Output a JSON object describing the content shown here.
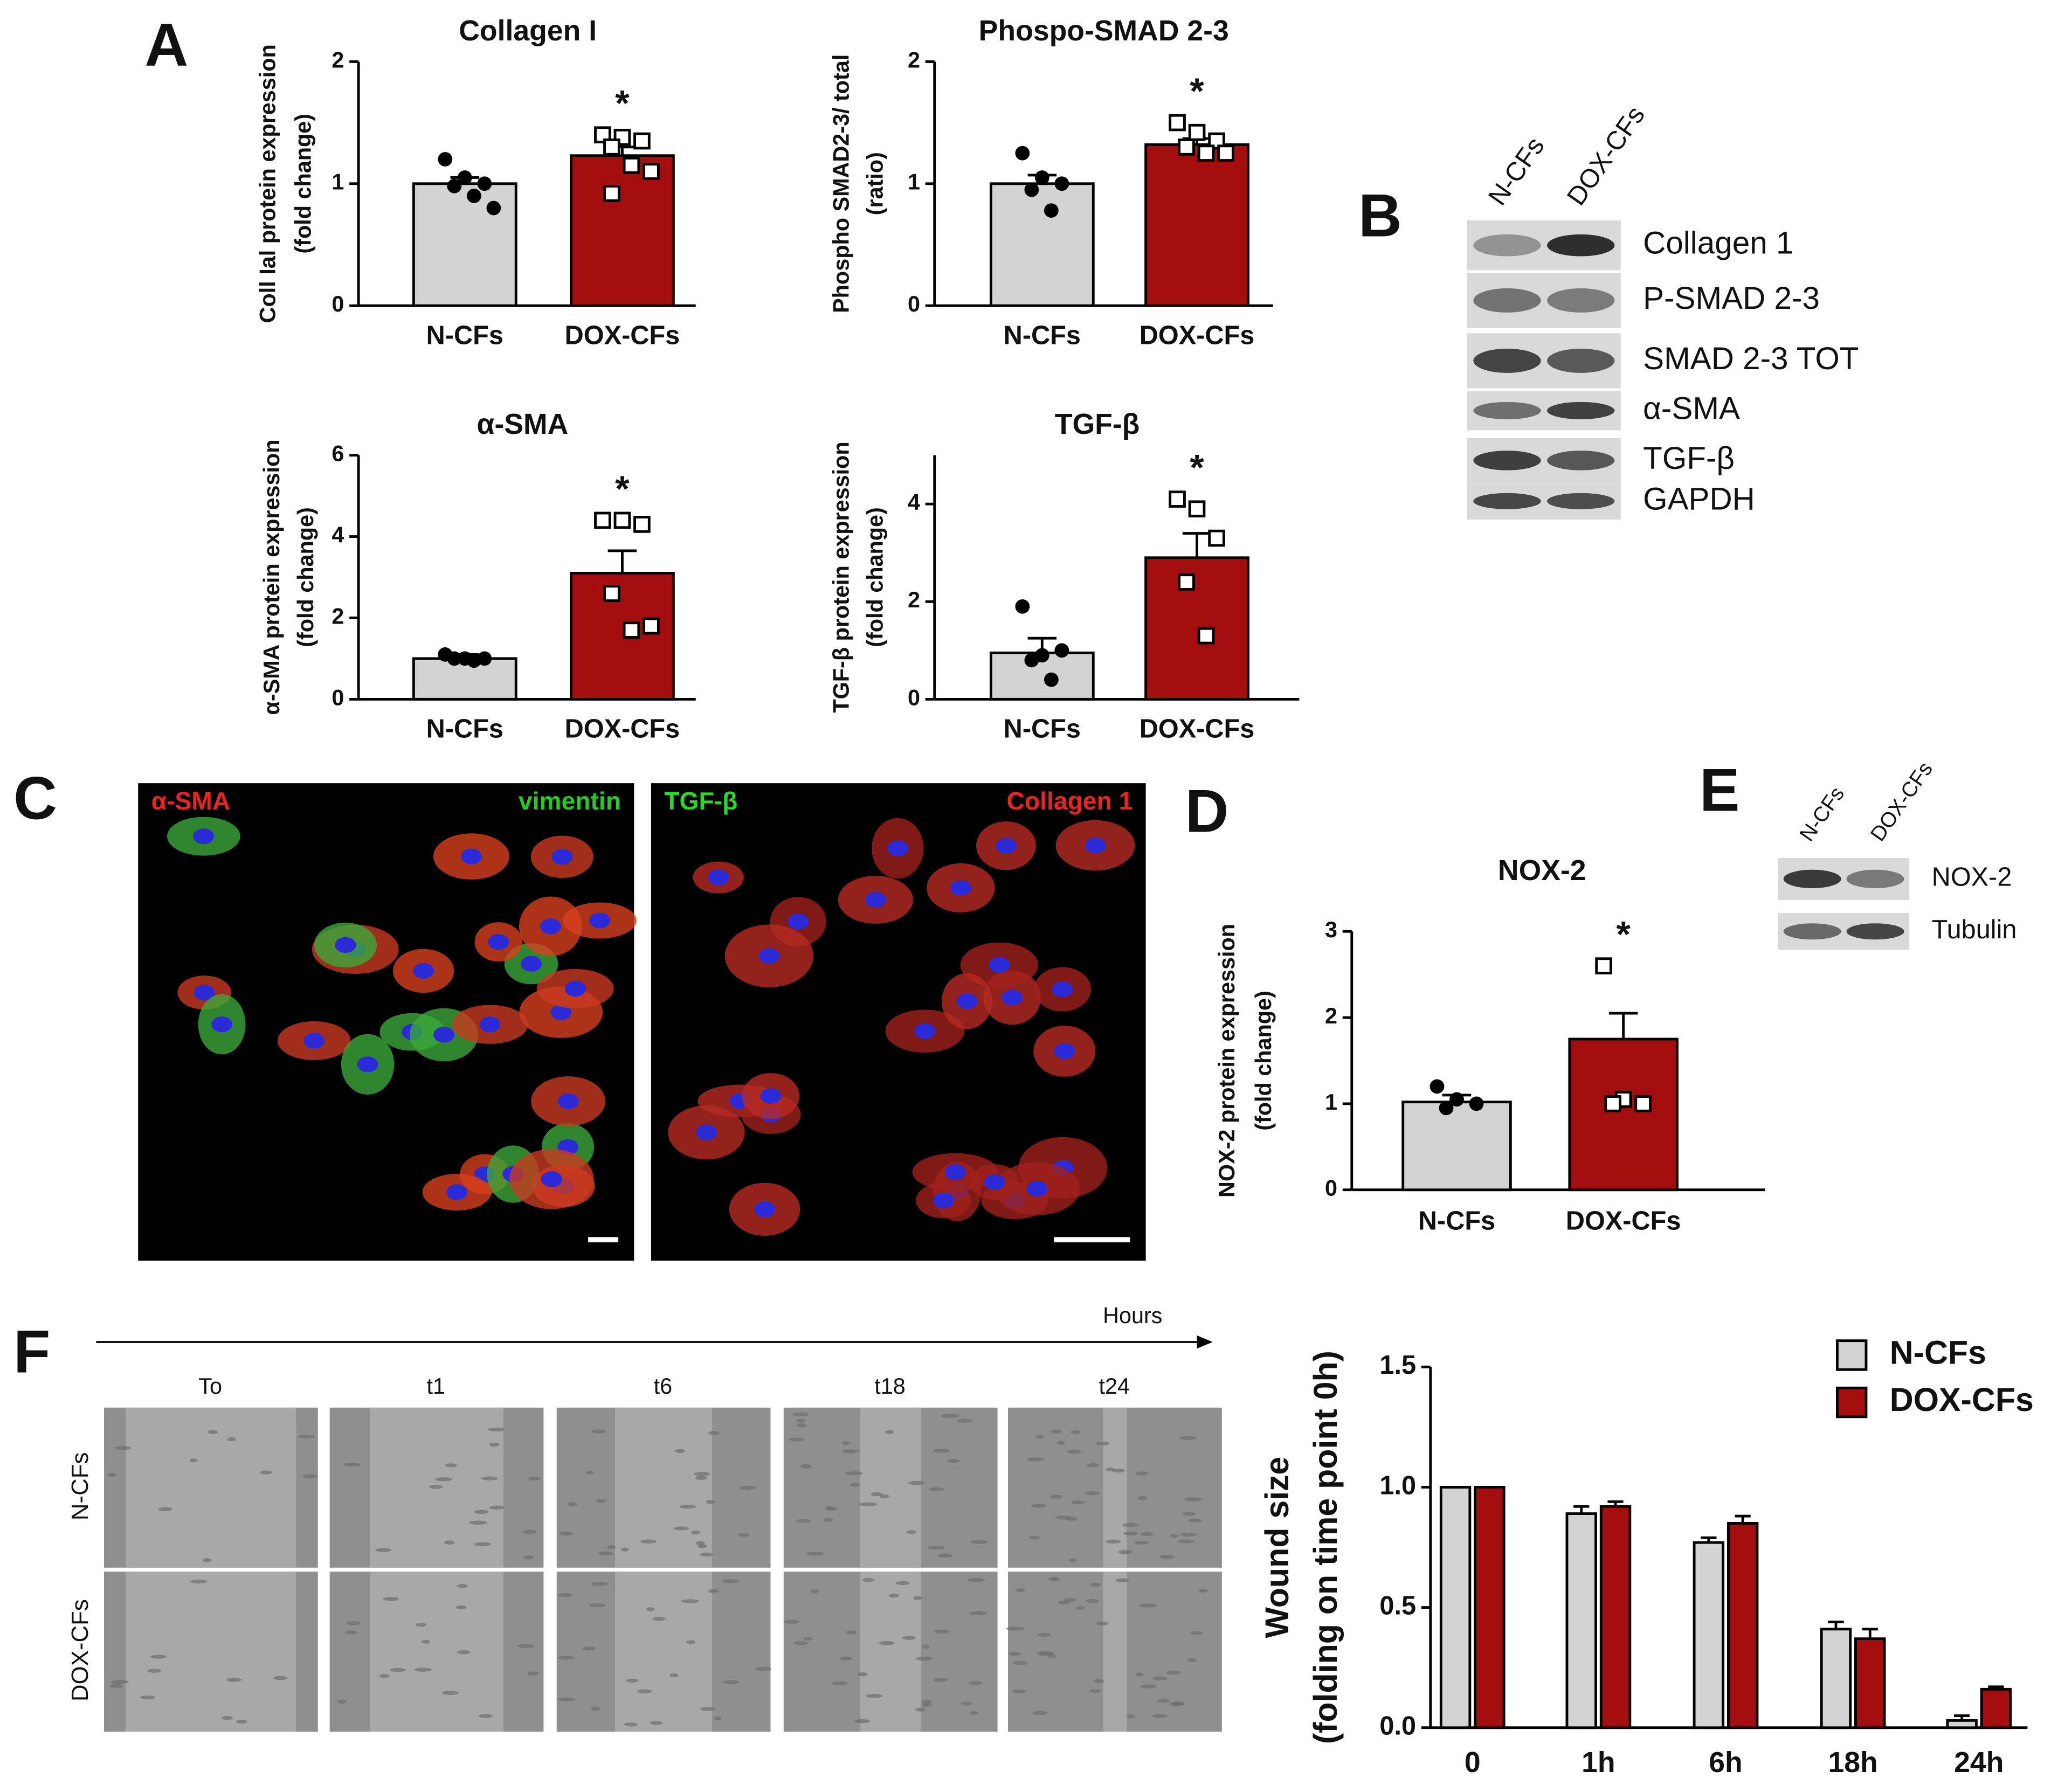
{
  "chart_data": [
    {
      "type": "bar",
      "title": "Collagen I",
      "ylabel": [
        "Coll Ial protein expression",
        "(fold change)"
      ],
      "categories": [
        "N-CFs",
        "DOX-CFs"
      ],
      "values": [
        1.0,
        1.23
      ],
      "errors": [
        0.05,
        0.07
      ],
      "points": [
        [
          1.2,
          1.05,
          1.0,
          0.98,
          0.9,
          0.8
        ],
        [
          1.4,
          1.38,
          1.35,
          1.3,
          1.15,
          1.1,
          0.92
        ]
      ],
      "colors": [
        "#d3d3d3",
        "#a50e0e"
      ],
      "markers": [
        "circle",
        "square"
      ],
      "ylim": [
        0,
        2
      ],
      "yticks": [
        0,
        1,
        2
      ],
      "annotation": "*"
    },
    {
      "type": "bar",
      "title": "Phospo-SMAD 2-3",
      "ylabel": [
        "Phospho SMAD2-3/ total",
        "(ratio)"
      ],
      "categories": [
        "N-CFs",
        "DOX-CFs"
      ],
      "values": [
        1.0,
        1.32
      ],
      "errors": [
        0.07,
        0.05
      ],
      "points": [
        [
          1.25,
          1.05,
          1.0,
          0.95,
          0.78
        ],
        [
          1.5,
          1.42,
          1.35,
          1.3,
          1.25,
          1.25
        ]
      ],
      "colors": [
        "#d3d3d3",
        "#a50e0e"
      ],
      "markers": [
        "circle",
        "square"
      ],
      "ylim": [
        0,
        2
      ],
      "yticks": [
        0,
        1,
        2
      ],
      "annotation": "*"
    },
    {
      "type": "bar",
      "title": "α-SMA",
      "ylabel": [
        "α-SMA protein expression",
        "(fold change)"
      ],
      "categories": [
        "N-CFs",
        "DOX-CFs"
      ],
      "values": [
        1.0,
        3.1
      ],
      "errors": [
        0.1,
        0.55
      ],
      "points": [
        [
          1.1,
          1.0,
          1.0,
          1.0,
          0.95
        ],
        [
          4.4,
          4.4,
          4.3,
          2.6,
          1.7,
          1.8
        ]
      ],
      "colors": [
        "#d3d3d3",
        "#a50e0e"
      ],
      "markers": [
        "circle",
        "square"
      ],
      "ylim": [
        0,
        6
      ],
      "yticks": [
        0,
        2,
        4,
        6
      ],
      "annotation": "*"
    },
    {
      "type": "bar",
      "title": "TGF-β",
      "ylabel": [
        "TGF-β protein expression",
        "(fold change)"
      ],
      "categories": [
        "N-CFs",
        "DOX-CFs"
      ],
      "values": [
        0.95,
        2.9
      ],
      "errors": [
        0.3,
        0.5
      ],
      "points": [
        [
          1.9,
          0.9,
          1.0,
          0.8,
          0.4
        ],
        [
          4.1,
          3.9,
          3.3,
          2.4,
          1.3
        ]
      ],
      "colors": [
        "#d3d3d3",
        "#a50e0e"
      ],
      "markers": [
        "circle",
        "square"
      ],
      "ylim": [
        0,
        5
      ],
      "yticks": [
        0,
        2,
        4
      ],
      "annotation": "*"
    },
    {
      "type": "bar",
      "title": "NOX-2",
      "ylabel": [
        "NOX-2 protein expression",
        "(fold change)"
      ],
      "categories": [
        "N-CFs",
        "DOX-CFs"
      ],
      "values": [
        1.02,
        1.75
      ],
      "errors": [
        0.08,
        0.3
      ],
      "points": [
        [
          1.2,
          1.05,
          1.0,
          0.95
        ],
        [
          2.6,
          1.05,
          1.0,
          1.0
        ]
      ],
      "colors": [
        "#d3d3d3",
        "#a50e0e"
      ],
      "markers": [
        "circle",
        "square"
      ],
      "ylim": [
        0,
        3
      ],
      "yticks": [
        0,
        1,
        2,
        3
      ],
      "annotation": "*"
    },
    {
      "type": "bar",
      "ylabel": [
        "Wound size",
        "(folding on time point 0h)"
      ],
      "categories": [
        "0",
        "1h",
        "6h",
        "18h",
        "24h"
      ],
      "series": [
        {
          "name": "N-CFs",
          "color": "#d3d3d3",
          "values": [
            1.0,
            0.89,
            0.77,
            0.41,
            0.03
          ],
          "errors": [
            0,
            0.03,
            0.02,
            0.03,
            0.02
          ]
        },
        {
          "name": "DOX-CFs",
          "color": "#a50e0e",
          "values": [
            1.0,
            0.92,
            0.85,
            0.37,
            0.16
          ],
          "errors": [
            0,
            0.02,
            0.03,
            0.04,
            0.01
          ]
        }
      ],
      "ylim": [
        0,
        1.5
      ],
      "yticks": [
        {
          "value": 0,
          "label": "0.0"
        },
        {
          "value": 0.5,
          "label": "0.5"
        },
        {
          "value": 1,
          "label": "1.0"
        },
        {
          "value": 1.5,
          "label": "1.5"
        }
      ],
      "legend": "upper right"
    }
  ],
  "panel_labels": [
    "A",
    "B",
    "C",
    "D",
    "E",
    "F"
  ],
  "blot_b": {
    "lanes": [
      "N-CFs",
      "DOX-CFs"
    ],
    "bands": [
      "Collagen 1",
      "P-SMAD 2-3",
      "SMAD 2-3 TOT",
      "α-SMA",
      "TGF-β",
      "GAPDH"
    ]
  },
  "blot_e": {
    "lanes": [
      "N-CFs",
      "DOX-CFs"
    ],
    "bands": [
      "NOX-2",
      "Tubulin"
    ]
  },
  "micrographs": [
    {
      "left": "α-SMA",
      "right": "vimentin"
    },
    {
      "left": "TGF-β",
      "right": "Collagen 1"
    }
  ],
  "wound": {
    "axis": "Hours",
    "timepoints": [
      "To",
      "t1",
      "t6",
      "t18",
      "t24"
    ],
    "rows": [
      "N-CFs",
      "DOX-CFs"
    ]
  }
}
